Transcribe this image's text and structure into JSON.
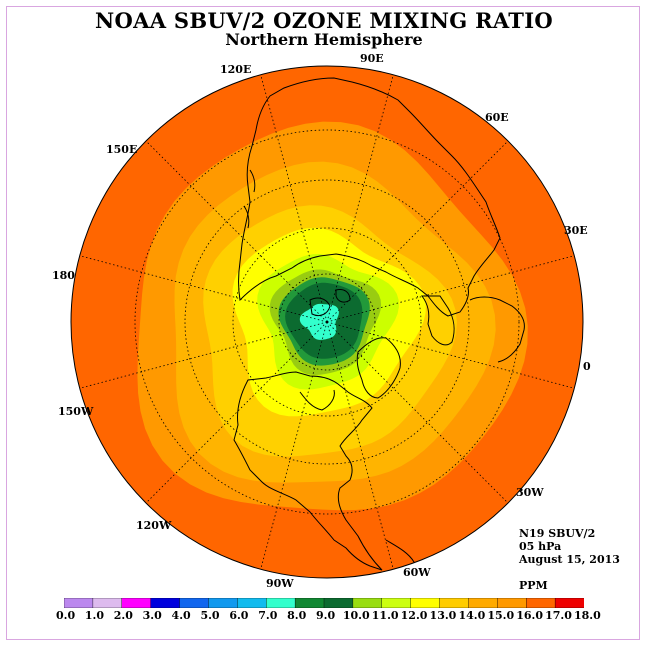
{
  "header": {
    "title": "NOAA SBUV/2 OZONE MIXING RATIO",
    "subtitle": "Northern Hemisphere"
  },
  "map": {
    "projection": "north-polar-stereographic",
    "longitude_labels": [
      "90E",
      "60E",
      "30E",
      "0",
      "30W",
      "60W",
      "90W",
      "120W",
      "150W",
      "180",
      "150E",
      "120E"
    ],
    "zones": [
      {
        "from": 16.0,
        "to": 17.0,
        "color": "#ff6600"
      },
      {
        "from": 15.0,
        "to": 16.0,
        "color": "#ff9900"
      },
      {
        "from": 14.0,
        "to": 15.0,
        "color": "#ffb400"
      },
      {
        "from": 13.0,
        "to": 14.0,
        "color": "#ffd000"
      },
      {
        "from": 12.0,
        "to": 13.0,
        "color": "#ffff00"
      },
      {
        "from": 11.0,
        "to": 12.0,
        "color": "#ccff00"
      },
      {
        "from": 10.0,
        "to": 11.0,
        "color": "#99cc11"
      },
      {
        "from": 9.0,
        "to": 10.0,
        "color": "#22993a"
      },
      {
        "from": 8.0,
        "to": 9.0,
        "color": "#0c6b30"
      },
      {
        "from": 7.0,
        "to": 8.0,
        "color": "#33ffcc"
      }
    ]
  },
  "info": {
    "instrument": "N19 SBUV/2",
    "level": "05 hPa",
    "date": "August 15, 2013",
    "units": "PPM"
  },
  "colorbar": {
    "ticks": [
      "0.0",
      "1.0",
      "2.0",
      "3.0",
      "4.0",
      "5.0",
      "6.0",
      "7.0",
      "8.0",
      "9.0",
      "10.0",
      "11.0",
      "12.0",
      "13.0",
      "14.0",
      "15.0",
      "16.0",
      "17.0",
      "18.0"
    ],
    "colors": [
      "#bb88ee",
      "#ddbbee",
      "#ff00ff",
      "#0000dd",
      "#1166ee",
      "#1199ee",
      "#11bbee",
      "#33ffcc",
      "#118833",
      "#0c6b30",
      "#99dd11",
      "#ccff11",
      "#ffff00",
      "#ffcc00",
      "#ffaa00",
      "#ff9900",
      "#ff6600",
      "#ee0000",
      "#885533"
    ]
  }
}
